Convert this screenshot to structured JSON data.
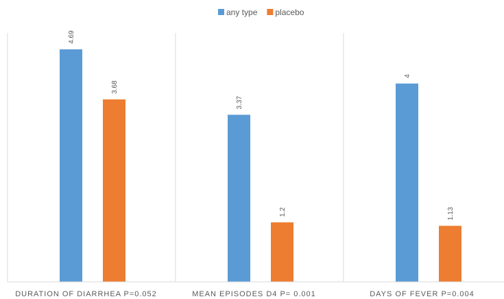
{
  "chart_data": {
    "type": "bar",
    "categories": [
      "DURATION OF DIARRHEA  P=0.052",
      "MEAN EPISODES D4 P= 0.001",
      "DAYS OF FEVER P=0.004"
    ],
    "series": [
      {
        "name": "any type",
        "values": [
          4.69,
          3.37,
          4
        ],
        "labels": [
          "4.69",
          "3.37",
          "4"
        ],
        "color": "#5b9bd5"
      },
      {
        "name": "placebo",
        "values": [
          3.68,
          1.2,
          1.13
        ],
        "labels": [
          "3.68",
          "1.2",
          "1.13"
        ],
        "color": "#ed7d31"
      }
    ],
    "ylim": [
      0,
      5
    ],
    "legend": "top-center",
    "grid": false,
    "separator_color": "#d9d9d9",
    "label_color": "#595959"
  }
}
